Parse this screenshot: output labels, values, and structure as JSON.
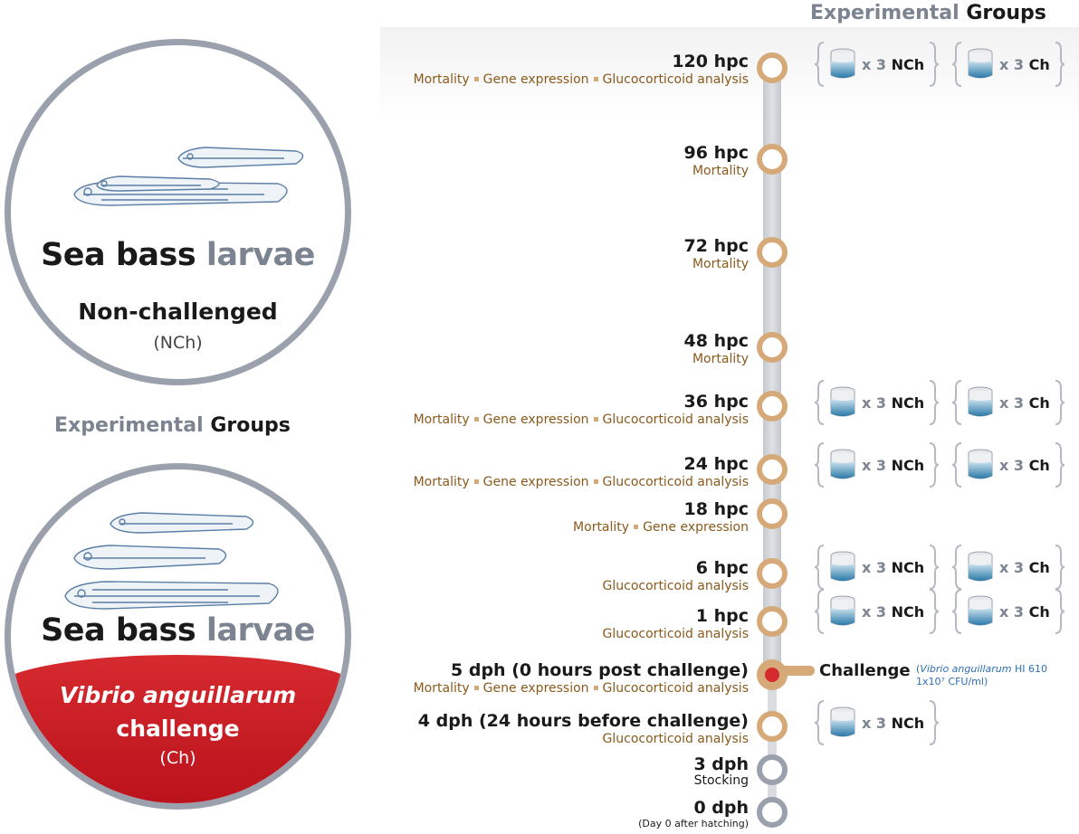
{
  "header": {
    "word1": "Experimental",
    "word2": "Groups"
  },
  "circle_nch": {
    "title_dark": "Sea bass",
    "title_light": "larvae",
    "subtitle": "Non-challenged",
    "abbr": "(NCh)"
  },
  "middle_header": {
    "word1": "Experimental",
    "word2": "Groups"
  },
  "circle_ch": {
    "title_dark": "Sea bass",
    "title_light": "larvae",
    "subtitle_line1": "Vibrio anguillarum",
    "subtitle_line2": "challenge",
    "abbr": "(Ch)"
  },
  "timeline": [
    {
      "time": "120 hpc",
      "tasks": [
        "Mortality",
        "Gene expression",
        "Glucocorticoid analysis"
      ]
    },
    {
      "time": "96 hpc",
      "tasks": [
        "Mortality"
      ]
    },
    {
      "time": "72 hpc",
      "tasks": [
        "Mortality"
      ]
    },
    {
      "time": "48 hpc",
      "tasks": [
        "Mortality"
      ]
    },
    {
      "time": "36 hpc",
      "tasks": [
        "Mortality",
        "Gene expression",
        "Glucocorticoid analysis"
      ]
    },
    {
      "time": "24 hpc",
      "tasks": [
        "Mortality",
        "Gene expression",
        "Glucocorticoid analysis"
      ]
    },
    {
      "time": "18 hpc",
      "tasks": [
        "Mortality",
        "Gene expression"
      ]
    },
    {
      "time": "6 hpc",
      "tasks": [
        "Glucocorticoid analysis"
      ]
    },
    {
      "time": "1 hpc",
      "tasks": [
        "Glucocorticoid analysis"
      ]
    },
    {
      "time": "5 dph (0 hours post challenge)",
      "tasks": [
        "Mortality",
        "Gene expression",
        "Glucocorticoid analysis"
      ]
    },
    {
      "time": "4 dph (24 hours before challenge)",
      "tasks": [
        "Glucocorticoid analysis"
      ]
    },
    {
      "time": "3 dph",
      "note": "Stocking"
    },
    {
      "time": "0 dph",
      "note": "(Day 0 after hatching)"
    }
  ],
  "groups": {
    "x": "x 3",
    "nch": "NCh",
    "ch": "Ch"
  },
  "challenge": {
    "label": "Challenge",
    "detail_open": "(",
    "species": "Vibrio anguillarum",
    "strain": " HI 610",
    "dose": "1x10⁷ CFU/ml)"
  },
  "colors": {
    "node": "#d6a978",
    "node_grey": "#9aa1ad",
    "task_text": "#8a5a1c",
    "challenge_red": "#d52a2e",
    "detail_blue": "#2d6fb4",
    "spine": "#cdd0d5"
  }
}
